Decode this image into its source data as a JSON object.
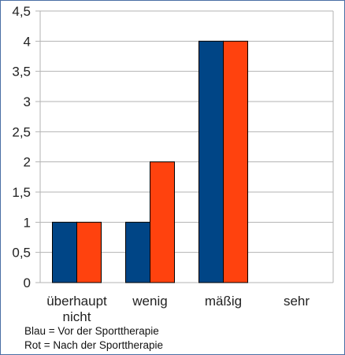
{
  "chart_data": {
    "type": "bar",
    "categories": [
      "überhaupt nicht",
      "wenig",
      "mäßig",
      "sehr"
    ],
    "category_lines": [
      [
        "überhaupt",
        "nicht"
      ],
      [
        "wenig"
      ],
      [
        "mäßig"
      ],
      [
        "sehr"
      ]
    ],
    "series": [
      {
        "values": [
          1,
          1,
          4,
          0
        ],
        "color": "#004586"
      },
      {
        "values": [
          1,
          2,
          4,
          0
        ],
        "color": "#ff420e"
      }
    ],
    "y_ticks": [
      "0",
      "0,5",
      "1",
      "1,5",
      "2",
      "2,5",
      "3",
      "3,5",
      "4",
      "4,5"
    ],
    "ylim": [
      0,
      4.5
    ],
    "grid": true,
    "gridline_color": "#b3b3b3",
    "axis_color": "#b3b3b3"
  },
  "notes": {
    "line1": "Blau = Vor der Sporttherapie",
    "line2": "Rot = Nach der Sporttherapie"
  }
}
